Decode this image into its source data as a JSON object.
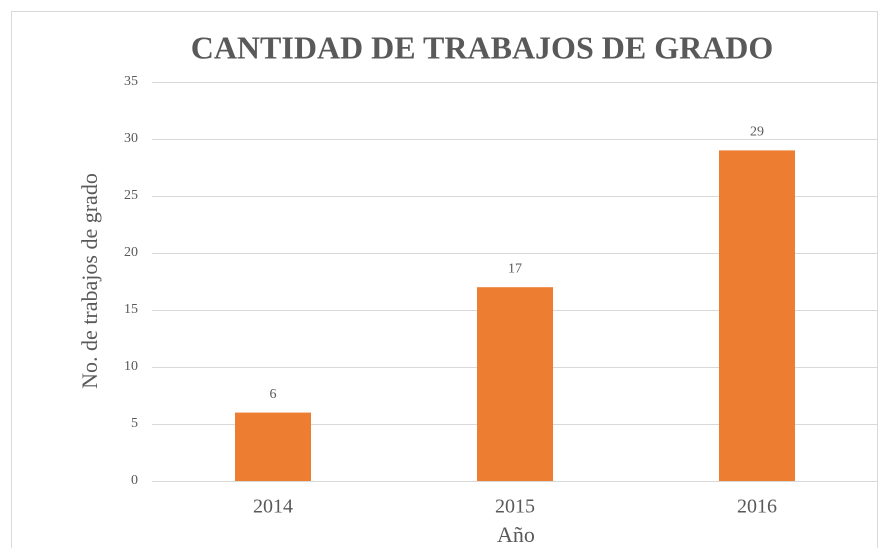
{
  "chart_data": {
    "type": "bar",
    "title": "CANTIDAD DE TRABAJOS DE GRADO",
    "x_label": "Año",
    "y_label": "No. de trabajos de grado",
    "categories": [
      "2014",
      "2015",
      "2016"
    ],
    "values": [
      6,
      17,
      29
    ],
    "color": "#ed7d31",
    "ylim": [
      0,
      35
    ],
    "yticks": [
      0,
      5,
      10,
      15,
      20,
      25,
      30,
      35
    ],
    "grid": true
  }
}
